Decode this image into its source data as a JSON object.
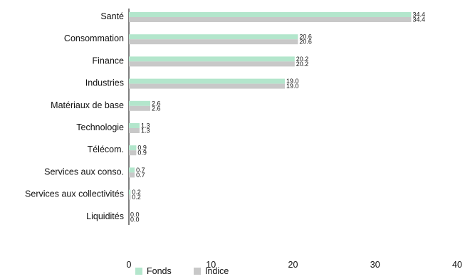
{
  "chart_data": {
    "type": "bar",
    "orientation": "horizontal",
    "categories": [
      "Santé",
      "Consommation",
      "Finance",
      "Industries",
      "Matériaux de base",
      "Technologie",
      "Télécom.",
      "Services aux conso.",
      "Services aux collectivités",
      "Liquidités"
    ],
    "series": [
      {
        "name": "Fonds",
        "color": "#b3e6cc",
        "values": [
          34.4,
          20.6,
          20.2,
          19.0,
          2.6,
          1.3,
          0.9,
          0.7,
          0.2,
          0.0
        ]
      },
      {
        "name": "Indice",
        "color": "#c8c8c8",
        "values": [
          34.4,
          20.6,
          20.2,
          19.0,
          2.6,
          1.3,
          0.9,
          0.7,
          0.2,
          0.0
        ]
      }
    ],
    "xlim": [
      0,
      40
    ],
    "xticks": [
      0,
      10,
      20,
      30,
      40
    ],
    "value_format_decimals": 1,
    "grid": false,
    "legend_position": "bottom"
  }
}
